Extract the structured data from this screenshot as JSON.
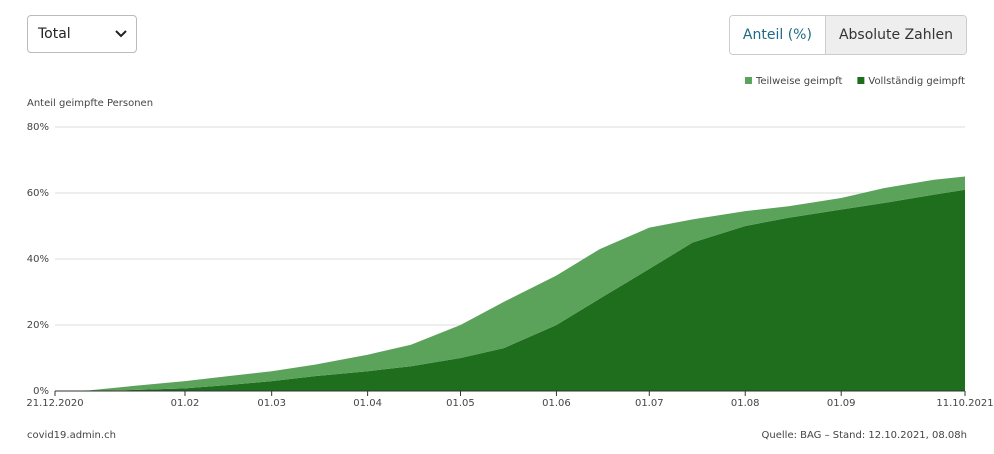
{
  "controls": {
    "dropdown": "Total",
    "buttons": [
      "Anteil (%)",
      "Absolute Zahlen"
    ]
  },
  "chart_data": {
    "type": "stacked-area",
    "y_label": "Anteil geimpfte Personen",
    "x": [
      "2020-12-21",
      "2021-01-01",
      "2021-01-15",
      "2021-02-01",
      "2021-02-15",
      "2021-03-01",
      "2021-03-15",
      "2021-04-01",
      "2021-04-15",
      "2021-05-01",
      "2021-05-15",
      "2021-06-01",
      "2021-06-15",
      "2021-07-01",
      "2021-07-15",
      "2021-08-01",
      "2021-08-15",
      "2021-09-01",
      "2021-09-15",
      "2021-10-01",
      "2021-10-11"
    ],
    "xlim": [
      "2020-12-21",
      "2021-10-11"
    ],
    "xticks": [
      {
        "value": "2020-12-21",
        "label": "21.12.2020"
      },
      {
        "value": "2021-02-01",
        "label": "01.02"
      },
      {
        "value": "2021-03-01",
        "label": "01.03"
      },
      {
        "value": "2021-04-01",
        "label": "01.04"
      },
      {
        "value": "2021-05-01",
        "label": "01.05"
      },
      {
        "value": "2021-06-01",
        "label": "01.06"
      },
      {
        "value": "2021-07-01",
        "label": "01.07"
      },
      {
        "value": "2021-08-01",
        "label": "01.08"
      },
      {
        "value": "2021-09-01",
        "label": "01.09"
      },
      {
        "value": "2021-10-11",
        "label": "11.10.2021"
      }
    ],
    "ylim": [
      0,
      80
    ],
    "yticks": [
      {
        "value": 0,
        "label": "0%"
      },
      {
        "value": 20,
        "label": "20%"
      },
      {
        "value": 40,
        "label": "40%"
      },
      {
        "value": 60,
        "label": "60%"
      },
      {
        "value": 80,
        "label": "80%"
      }
    ],
    "grid": true,
    "legend": "top-right",
    "series": [
      {
        "name": "Vollständig geimpft",
        "color": "#1e6e1e",
        "values": [
          0,
          0,
          0.3,
          0.8,
          1.8,
          3,
          4.5,
          6,
          7.5,
          10,
          13,
          20,
          28,
          37,
          45,
          50,
          52.5,
          55,
          57,
          59.5,
          61
        ]
      },
      {
        "name": "Teilweise geimpft",
        "color": "#5ba35b",
        "values": [
          0,
          0.2,
          1.2,
          2.2,
          2.7,
          3,
          3.5,
          5,
          6.5,
          10,
          14,
          15,
          15,
          12.5,
          7,
          4.5,
          3.5,
          3.5,
          4.5,
          4.5,
          4
        ]
      }
    ]
  },
  "footer": {
    "site": "covid19.admin.ch",
    "source": "Quelle: BAG – Stand: 12.10.2021, 08.08h"
  }
}
